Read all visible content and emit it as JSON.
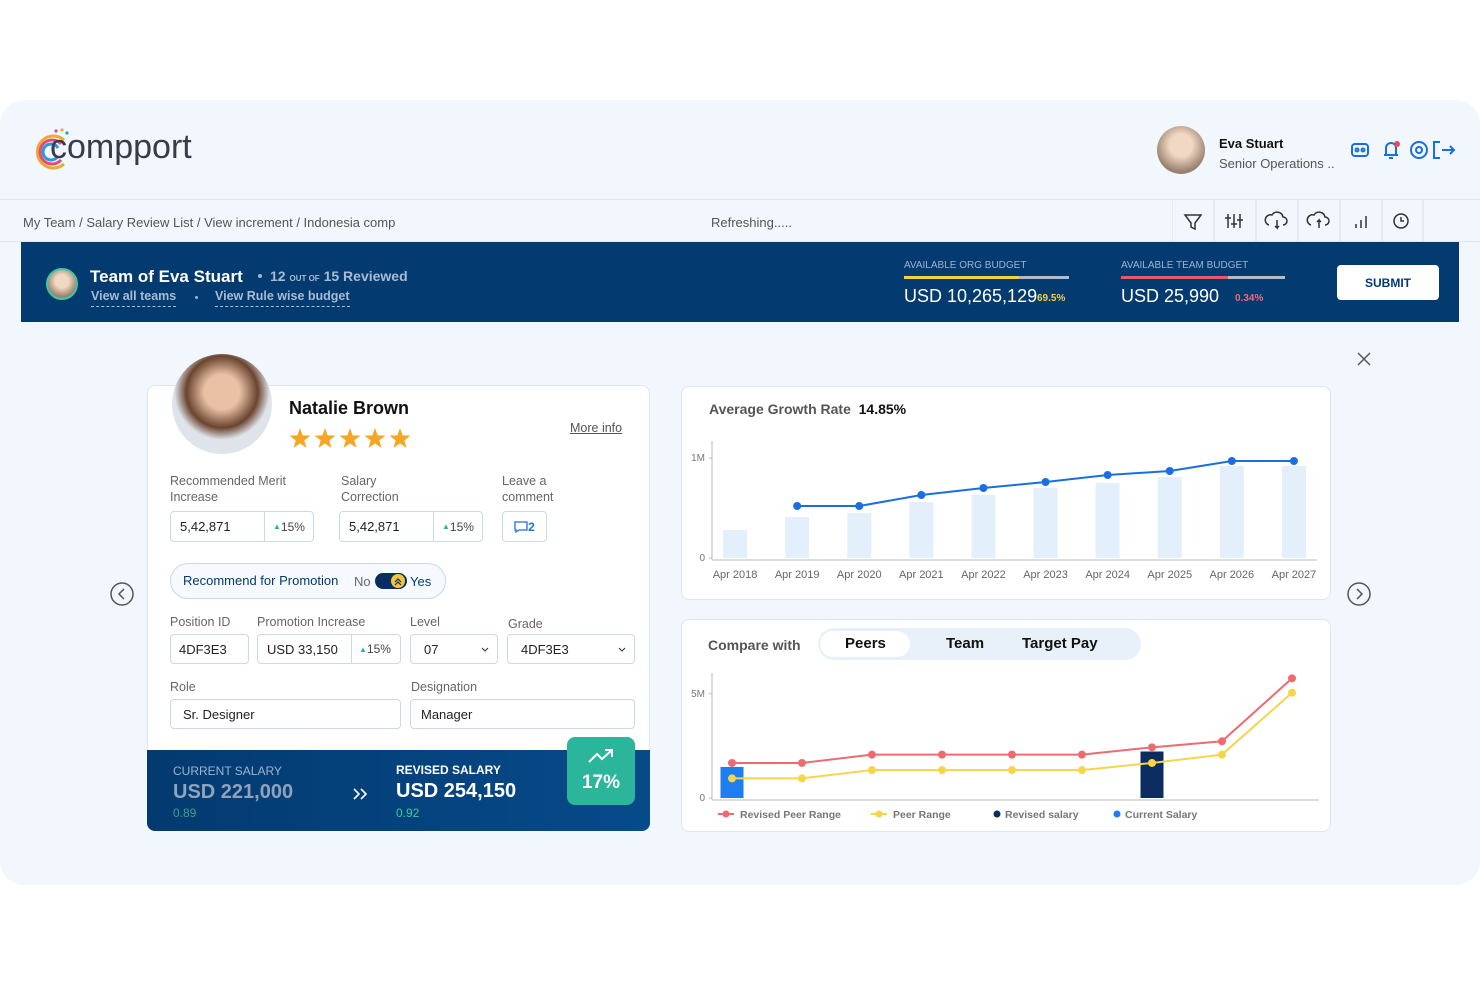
{
  "header": {
    "logo": "compport",
    "user_name": "Eva Stuart",
    "user_role": "Senior Operations ..",
    "breadcrumb": "My Team / Salary Review List / View increment / Indonesia comp",
    "status": "Refreshing....."
  },
  "banner": {
    "team_title": "Team of Eva Stuart",
    "reviewed_count": "12",
    "out_of": "OUT OF",
    "total": "15",
    "reviewed_label": "Reviewed",
    "link_teams": "View all teams",
    "link_budget": "View Rule wise budget",
    "org_budget_label": "AVAILABLE ORG BUDGET",
    "org_budget_value": "USD 10,265,129",
    "org_budget_pct": "69.5%",
    "team_budget_label": "AVAILABLE TEAM BUDGET",
    "team_budget_value": "USD 25,990",
    "team_budget_pct": "0.34%",
    "submit": "SUBMIT"
  },
  "card": {
    "name": "Natalie Brown",
    "rating": 5,
    "more_info": "More info",
    "merit_label": "Recommended Merit Increase",
    "merit_value": "5,42,871",
    "merit_pct": "15%",
    "correction_label": "Salary Correction",
    "correction_value": "5,42,871",
    "correction_pct": "15%",
    "comment_label": "Leave a comment",
    "comment_count": "2",
    "promotion_label": "Recommend for Promotion",
    "promotion_no": "No",
    "promotion_yes": "Yes",
    "position_label": "Position ID",
    "position_value": "4DF3E3",
    "promo_inc_label": "Promotion Increase",
    "promo_inc_value": "USD 33,150",
    "promo_inc_pct": "15%",
    "level_label": "Level",
    "level_value": "07",
    "grade_label": "Grade",
    "grade_value": "4DF3E3",
    "role_label": "Role",
    "role_value": "Sr. Designer",
    "designation_label": "Designation",
    "designation_value": "Manager",
    "current_label": "CURRENT SALARY",
    "current_value": "USD 221,000",
    "current_ratio": "0.89",
    "revised_label": "REVISED SALARY",
    "revised_value": "USD 254,150",
    "revised_ratio": "0.92",
    "growth": "17%"
  },
  "chart_data": [
    {
      "type": "combo",
      "title": "Average Growth Rate",
      "subtitle": "14.85%",
      "categories": [
        "Apr 2018",
        "Apr 2019",
        "Apr 2020",
        "Apr 2021",
        "Apr 2022",
        "Apr 2023",
        "Apr 2024",
        "Apr 2025",
        "Apr 2026",
        "Apr 2027"
      ],
      "series": [
        {
          "type": "bar",
          "color": "#e3f0fc",
          "values": [
            0.28,
            0.41,
            0.45,
            0.56,
            0.63,
            0.7,
            0.75,
            0.81,
            0.92,
            0.92
          ]
        },
        {
          "type": "line",
          "color": "#1a6fe0",
          "values": [
            null,
            0.52,
            0.52,
            0.63,
            0.7,
            0.76,
            0.83,
            0.87,
            0.97,
            0.97
          ]
        }
      ],
      "ylim": [
        0,
        1.15
      ],
      "yticks": [
        0,
        {
          "value": 1,
          "label": "1M"
        }
      ]
    },
    {
      "type": "combo",
      "title": "Compare with",
      "tabs": [
        "Peers",
        "Team",
        "Target Pay"
      ],
      "active_tab": 0,
      "categories": [
        null,
        null,
        null,
        null,
        null,
        null,
        null,
        null,
        null
      ],
      "series": [
        {
          "name": "Revised Peer Range",
          "type": "line",
          "color": "#ec6b70",
          "values": [
            1.68,
            1.68,
            2.08,
            2.08,
            2.08,
            2.08,
            2.43,
            2.72,
            5.74
          ]
        },
        {
          "name": "Peer Range",
          "type": "line",
          "color": "#f5d54a",
          "values": [
            0.94,
            0.94,
            1.34,
            1.34,
            1.34,
            1.34,
            1.68,
            2.08,
            5.05
          ]
        },
        {
          "name": "Revised salary",
          "type": "bar",
          "color": "#0b2c5e",
          "values": [
            null,
            null,
            null,
            null,
            null,
            null,
            2.23,
            null,
            null
          ]
        },
        {
          "name": "Current Salary",
          "type": "bar",
          "color": "#1c7ef0",
          "values": [
            1.49,
            null,
            null,
            null,
            null,
            null,
            null,
            null,
            null
          ]
        }
      ],
      "ylim": [
        0,
        5.9
      ],
      "yticks": [
        0,
        {
          "value": 5,
          "label": "5M"
        }
      ]
    }
  ]
}
